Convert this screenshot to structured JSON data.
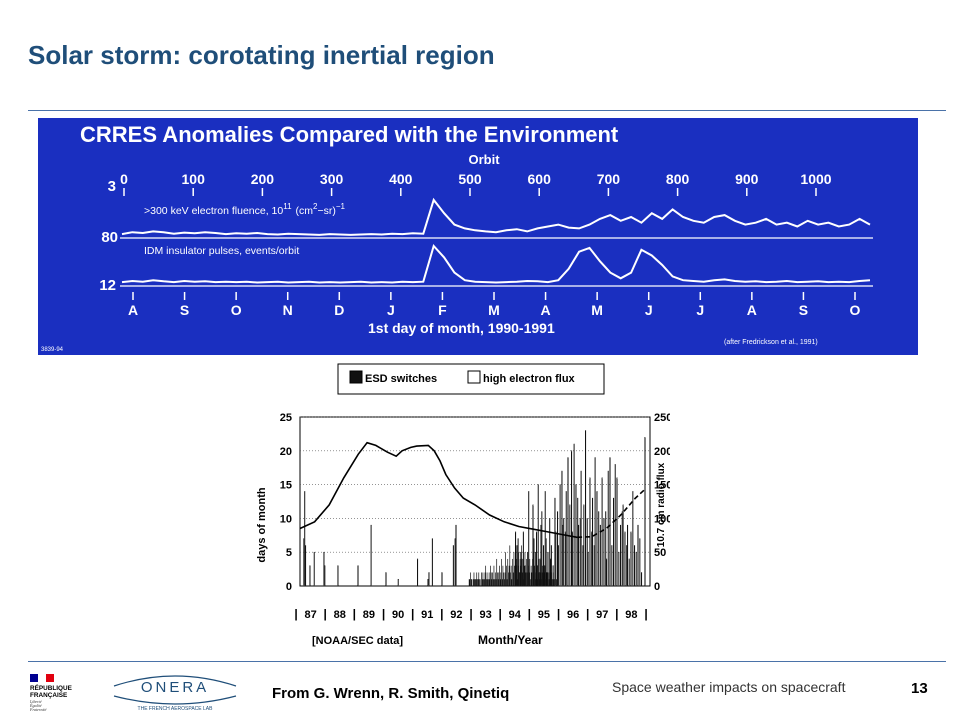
{
  "slide": {
    "title": "Solar storm: corotating inertial region",
    "source": "From G. Wrenn, R. Smith, Qinetiq",
    "topic": "Space weather impacts on spacecraft",
    "page_number": "13",
    "colors": {
      "title": "#1f4e79",
      "panel_blue": "#1a2fc0",
      "rule": "#4a72a8"
    }
  },
  "logos": {
    "republique": {
      "lines": [
        "RÉPUBLIQUE",
        "FRANÇAISE"
      ],
      "motto": [
        "Liberté",
        "Égalité",
        "Fraternité"
      ],
      "flag_colors": [
        "#000091",
        "#ffffff",
        "#e1000f"
      ]
    },
    "onera": {
      "name": "ONERA",
      "tagline": "THE FRENCH AEROSPACE LAB"
    }
  },
  "top_chart": {
    "title": "CRRES Anomalies Compared with the Environment",
    "orbit_label": "Orbit",
    "orbit_ticks": [
      "0",
      "100",
      "200",
      "300",
      "400",
      "500",
      "600",
      "700",
      "800",
      "900",
      "1000"
    ],
    "series_fluence_label": ">300 keV electron fluence, 10",
    "fluence_exp": "11",
    "fluence_unit": "(cm",
    "fluence_unit_exp": "2",
    "fluence_unit_tail": "−sr)",
    "fluence_unit_exp2": "−1",
    "series_pulses_label": "IDM insulator pulses, events/orbit",
    "y_labels": [
      "3",
      "80",
      "12"
    ],
    "months": [
      "A",
      "S",
      "O",
      "N",
      "D",
      "J",
      "F",
      "M",
      "A",
      "M",
      "J",
      "J",
      "A",
      "S",
      "O"
    ],
    "xlabel": "1st day of month, 1990-1991",
    "credit": "(after Fredrickson et al., 1991)",
    "corner_id": "3839-94",
    "fluence_profile": [
      0.05,
      0.1,
      0.08,
      0.12,
      0.1,
      0.06,
      0.09,
      0.07,
      0.1,
      0.08,
      0.05,
      0.07,
      0.06,
      0.08,
      0.05,
      0.04,
      0.06,
      0.05,
      0.04,
      0.03,
      0.05,
      0.04,
      0.03,
      0.04,
      0.05,
      0.04,
      0.06,
      0.05,
      0.07,
      0.06,
      0.95,
      0.6,
      0.3,
      0.2,
      0.15,
      0.12,
      0.1,
      0.15,
      0.18,
      0.12,
      0.2,
      0.25,
      0.3,
      0.22,
      0.2,
      0.3,
      0.45,
      0.55,
      0.4,
      0.5,
      0.35,
      0.6,
      0.45,
      0.7,
      0.5,
      0.4,
      0.35,
      0.5,
      0.55,
      0.4,
      0.3,
      0.35,
      0.45,
      0.3,
      0.35,
      0.25,
      0.4,
      0.3,
      0.35,
      0.25,
      0.3,
      0.45,
      0.3
    ],
    "pulse_profile": [
      0.05,
      0.08,
      0.06,
      0.1,
      0.07,
      0.05,
      0.08,
      0.06,
      0.07,
      0.05,
      0.06,
      0.05,
      0.06,
      0.04,
      0.05,
      0.06,
      0.04,
      0.05,
      0.06,
      0.04,
      0.05,
      0.04,
      0.05,
      0.06,
      0.04,
      0.05,
      0.04,
      0.06,
      0.05,
      0.06,
      1.0,
      0.7,
      0.3,
      0.1,
      0.06,
      0.05,
      0.04,
      0.05,
      0.06,
      0.08,
      0.07,
      0.05,
      0.1,
      0.4,
      0.85,
      0.95,
      0.6,
      0.3,
      0.15,
      0.3,
      0.9,
      0.75,
      0.5,
      0.2,
      0.1,
      0.08,
      0.06,
      0.1,
      0.12,
      0.08,
      0.06,
      0.07,
      0.05,
      0.06,
      0.08,
      0.05,
      0.06,
      0.07,
      0.05,
      0.06,
      0.05,
      0.08,
      0.1
    ]
  },
  "chart_data": {
    "type": "bar",
    "legend": [
      {
        "name": "ESD switches",
        "fill": "#111111"
      },
      {
        "name": "high electron flux",
        "fill": "#ffffff"
      }
    ],
    "y_left": {
      "label": "days of month",
      "min": 0,
      "max": 25,
      "ticks": [
        "0",
        "5",
        "10",
        "15",
        "20",
        "25"
      ]
    },
    "y_right": {
      "label": "10.7 cm radio flux",
      "min": 0,
      "max": 250,
      "ticks": [
        "0",
        "50",
        "100",
        "150",
        "200",
        "250"
      ]
    },
    "x_years": [
      "87",
      "88",
      "89",
      "90",
      "91",
      "92",
      "93",
      "94",
      "95",
      "96",
      "97",
      "98"
    ],
    "xlabel": "Month/Year",
    "source_note": "[NOAA/SEC data]",
    "high_flux_days": [
      0,
      0,
      0,
      0,
      7,
      14,
      6,
      0,
      0,
      0,
      0,
      3,
      0,
      0,
      0,
      0,
      5,
      0,
      0,
      0,
      0,
      0,
      0,
      0,
      0,
      0,
      0,
      5,
      3,
      0,
      0,
      0,
      0,
      0,
      0,
      0,
      0,
      0,
      0,
      0,
      0,
      0,
      0,
      3,
      0,
      0,
      0,
      0,
      0,
      0,
      0,
      0,
      0,
      0,
      0,
      0,
      0,
      0,
      0,
      0,
      0,
      0,
      0,
      0,
      0,
      0,
      3,
      0,
      0,
      0,
      0,
      0,
      0,
      0,
      0,
      0,
      0,
      0,
      0,
      0,
      0,
      9,
      0,
      0,
      0,
      0,
      0,
      0,
      0,
      0,
      0,
      0,
      0,
      0,
      0,
      0,
      0,
      0,
      2,
      0,
      0,
      0,
      0,
      0,
      0,
      0,
      0,
      0,
      0,
      0,
      0,
      0,
      1,
      0,
      0,
      0,
      0,
      0,
      0,
      0,
      0,
      0,
      0,
      0,
      0,
      0,
      0,
      0,
      0,
      0,
      0,
      0,
      0,
      0,
      4,
      0,
      0,
      0,
      0,
      0,
      0,
      0,
      0,
      0,
      0,
      0,
      1,
      2,
      0,
      0,
      0,
      7,
      0,
      0,
      0,
      0,
      0,
      0,
      0,
      0,
      0,
      0,
      2,
      0,
      0,
      0,
      0,
      0,
      0,
      0,
      0,
      0,
      0,
      0,
      0,
      6,
      0,
      7,
      9,
      0,
      0,
      0,
      0,
      0,
      0,
      0,
      0,
      0,
      0,
      0,
      0,
      0,
      0,
      0,
      0,
      0,
      0,
      0,
      0,
      0,
      0,
      0,
      0,
      0,
      0,
      0,
      0,
      0,
      0,
      0,
      0,
      0,
      0,
      0,
      0,
      0,
      0,
      0,
      0,
      0,
      0,
      0,
      0,
      0,
      0,
      0,
      0,
      0,
      0,
      0,
      0,
      0,
      0,
      0,
      0,
      0,
      0,
      0,
      0,
      0,
      0,
      0,
      0,
      0,
      0,
      0,
      8,
      3,
      6,
      7,
      0,
      2,
      5,
      4,
      0,
      8,
      0,
      3,
      0,
      0,
      5,
      14,
      0,
      0,
      0,
      0,
      12,
      7,
      0,
      5,
      8,
      3,
      15,
      2,
      4,
      9,
      11,
      0,
      6,
      3,
      14,
      7,
      2,
      5,
      0,
      10,
      4,
      6,
      0,
      3,
      0,
      13,
      8,
      0,
      11,
      6,
      0,
      15,
      0,
      17,
      9,
      10,
      0,
      8,
      14,
      0,
      19,
      0,
      12,
      0,
      20,
      8,
      0,
      21,
      0,
      15,
      0,
      13,
      9,
      0,
      10,
      17,
      0,
      6,
      12,
      0,
      23,
      0,
      10,
      5,
      0,
      16,
      0,
      8,
      13,
      0,
      6,
      19,
      0,
      14,
      0,
      11,
      0,
      9,
      0,
      16,
      0,
      10,
      0,
      11,
      4,
      0,
      17,
      0,
      19,
      0,
      6,
      0,
      13,
      0,
      18,
      0,
      16,
      0,
      5,
      0,
      9,
      0,
      11,
      12,
      0,
      8,
      0,
      6,
      9,
      0,
      4,
      0,
      8,
      0,
      14,
      0,
      6,
      0,
      5,
      0,
      9,
      0,
      7,
      0,
      2,
      0,
      0,
      0,
      22,
      0,
      0,
      0,
      0,
      0
    ],
    "esd_days": [
      0,
      0,
      0,
      0,
      0,
      0,
      0,
      0,
      0,
      0,
      0,
      0,
      0,
      0,
      0,
      0,
      0,
      0,
      0,
      0,
      0,
      0,
      0,
      0,
      0,
      0,
      0,
      0,
      0,
      0,
      0,
      0,
      0,
      0,
      0,
      0,
      0,
      0,
      0,
      0,
      0,
      0,
      0,
      0,
      0,
      0,
      0,
      0,
      0,
      0,
      0,
      0,
      0,
      0,
      0,
      0,
      0,
      0,
      0,
      0,
      0,
      0,
      0,
      0,
      0,
      0,
      0,
      0,
      0,
      0,
      0,
      0,
      0,
      0,
      0,
      0,
      0,
      0,
      0,
      0,
      0,
      0,
      0,
      0,
      0,
      0,
      0,
      0,
      0,
      0,
      0,
      0,
      0,
      0,
      0,
      0,
      0,
      0,
      0,
      0,
      0,
      0,
      0,
      0,
      0,
      0,
      0,
      0,
      0,
      0,
      0,
      0,
      0,
      0,
      0,
      0,
      0,
      0,
      0,
      0,
      0,
      0,
      0,
      0,
      0,
      0,
      0,
      0,
      0,
      0,
      0,
      0,
      0,
      0,
      0,
      0,
      0,
      0,
      0,
      0,
      0,
      0,
      0,
      0,
      0,
      0,
      0,
      0,
      0,
      0,
      0,
      0,
      0,
      0,
      0,
      0,
      0,
      0,
      0,
      0,
      0,
      0,
      0,
      0,
      0,
      0,
      0,
      0,
      0,
      0,
      0,
      0,
      0,
      0,
      0,
      0,
      0,
      0,
      0,
      0,
      0,
      0,
      0,
      0,
      0,
      0,
      0,
      0,
      0,
      0,
      0,
      0,
      0,
      0,
      0,
      0,
      0,
      0,
      0,
      0,
      0,
      0,
      0,
      0,
      0,
      0,
      0,
      0,
      0,
      0,
      0,
      0,
      0,
      0,
      0,
      0,
      0,
      0,
      0,
      0,
      0,
      0,
      0,
      0,
      0,
      0,
      0,
      0,
      0,
      0,
      0,
      0,
      0,
      0,
      0,
      0,
      0,
      0,
      0,
      0,
      0,
      0,
      0,
      0,
      0,
      1,
      1,
      2,
      1,
      1,
      0,
      1,
      2,
      1,
      1,
      1,
      2,
      1,
      1,
      2,
      1,
      1,
      0,
      2,
      1,
      2,
      1,
      1,
      2,
      3,
      1,
      2,
      1,
      1,
      2,
      1,
      3,
      2,
      1,
      2,
      1,
      3,
      1,
      2,
      1,
      4,
      2,
      1,
      2,
      3,
      1,
      2,
      4,
      1,
      3,
      2,
      1,
      2,
      5,
      3,
      1,
      4,
      2,
      3,
      6,
      2,
      3,
      1,
      4,
      2,
      5,
      3,
      2,
      6,
      4,
      1,
      3,
      5,
      2,
      4,
      3,
      6,
      2,
      4,
      1,
      3,
      5,
      2,
      4,
      2,
      5,
      3,
      2,
      4,
      1,
      3,
      2,
      4,
      2,
      5,
      3,
      1,
      2,
      3,
      1,
      2,
      4,
      1,
      3,
      2,
      1,
      2,
      3,
      1,
      2,
      1,
      3,
      2,
      1,
      2,
      1,
      2,
      1,
      1,
      2,
      1,
      1,
      2,
      1,
      1,
      1,
      0,
      1,
      1,
      0,
      0,
      0,
      0,
      0,
      0,
      0,
      0,
      0,
      0,
      0,
      0,
      0,
      0,
      0,
      0,
      0,
      0,
      0,
      0,
      0,
      0,
      0,
      0,
      0,
      0,
      0,
      0,
      0,
      0,
      0,
      0,
      0,
      0,
      0,
      0,
      0,
      0,
      0,
      0,
      0,
      0,
      0,
      0,
      0,
      0,
      0,
      0,
      0,
      0,
      0,
      0,
      0,
      0,
      0,
      0,
      0,
      0,
      0,
      0,
      0,
      0,
      0,
      0,
      0,
      0,
      0,
      0,
      0,
      0,
      0,
      0,
      0,
      0,
      0,
      0,
      0,
      0,
      0,
      0,
      0,
      0,
      0,
      0,
      0,
      0,
      0,
      0,
      0,
      0,
      0,
      0,
      0,
      0,
      0,
      0,
      0,
      0,
      0,
      0,
      0,
      0,
      0,
      0,
      0,
      0,
      0,
      0,
      0,
      0,
      0,
      0,
      0,
      0,
      0,
      0,
      0,
      0,
      0,
      0,
      0,
      0,
      0,
      0,
      0,
      0,
      0,
      0,
      0,
      0,
      0,
      0,
      0,
      0
    ],
    "radio_flux_observed": [
      [
        87.0,
        85
      ],
      [
        87.5,
        95
      ],
      [
        88.0,
        120
      ],
      [
        88.5,
        160
      ],
      [
        89.0,
        195
      ],
      [
        89.3,
        212
      ],
      [
        89.6,
        208
      ],
      [
        90.0,
        198
      ],
      [
        90.3,
        192
      ],
      [
        90.5,
        200
      ],
      [
        90.8,
        205
      ],
      [
        91.0,
        207
      ],
      [
        91.4,
        208
      ],
      [
        91.6,
        200
      ],
      [
        91.8,
        185
      ],
      [
        92.0,
        165
      ],
      [
        92.3,
        145
      ],
      [
        92.6,
        130
      ],
      [
        93.0,
        120
      ],
      [
        93.5,
        105
      ],
      [
        94.0,
        95
      ],
      [
        94.5,
        88
      ],
      [
        95.0,
        84
      ],
      [
        95.5,
        80
      ],
      [
        96.0,
        76
      ],
      [
        96.5,
        72
      ]
    ],
    "radio_flux_predicted": [
      [
        96.5,
        72
      ],
      [
        97.0,
        73
      ],
      [
        97.5,
        85
      ],
      [
        98.0,
        105
      ],
      [
        98.5,
        130
      ],
      [
        98.8,
        142
      ]
    ]
  }
}
